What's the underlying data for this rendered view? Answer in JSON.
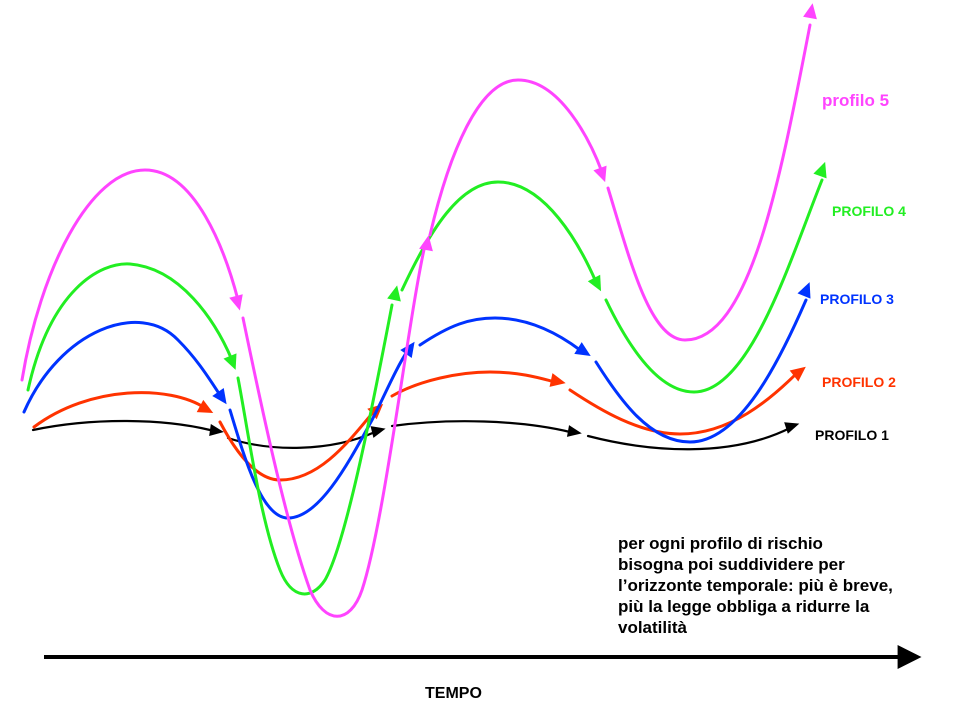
{
  "profiles": [
    {
      "id": "p1",
      "label": "PROFILO 1",
      "color": "#000000"
    },
    {
      "id": "p2",
      "label": "PROFILO 2",
      "color": "#ff3300"
    },
    {
      "id": "p3",
      "label": "PROFILO 3",
      "color": "#0033ff"
    },
    {
      "id": "p4",
      "label": "PROFILO 4",
      "color": "#22ee22"
    },
    {
      "id": "p5",
      "label": "profilo 5",
      "color": "#ff44ff"
    }
  ],
  "axis": {
    "label": "TEMPO"
  },
  "note": {
    "lines": [
      "per ogni profilo di rischio",
      "bisogna poi suddividere per",
      "l’orizzonte temporale: più è breve,",
      "più la legge obbliga a ridurre la",
      "volatilità"
    ]
  }
}
